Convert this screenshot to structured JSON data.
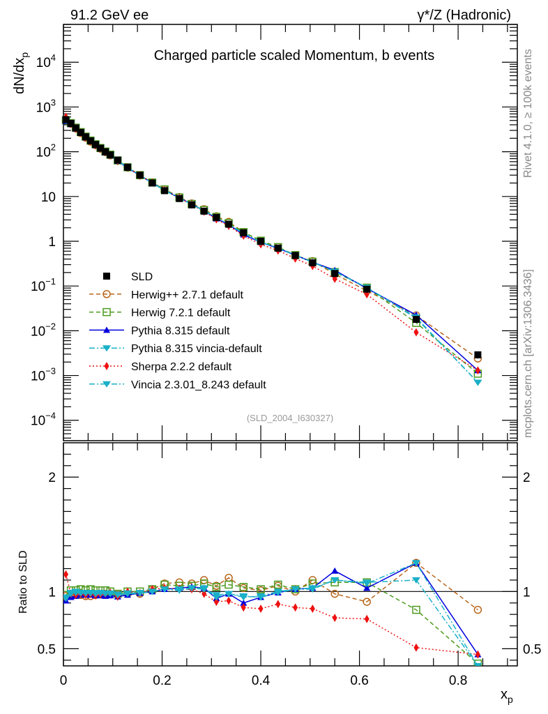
{
  "header": {
    "left": "91.2 GeV ee",
    "right": "γ*/Z (Hadronic)"
  },
  "side_labels": {
    "upper": "Rivet 4.1.0, ≥ 100k events",
    "lower": "mcplots.cern.ch [arXiv:1306.3436]"
  },
  "chart_data": [
    {
      "type": "line",
      "panel": "main",
      "title": "Charged particle scaled Momentum, b events",
      "analysis_id": "(SLD_2004_I630327)",
      "xlabel": "x_p",
      "ylabel": "dN/dx_p",
      "yscale": "log",
      "xlim": [
        0,
        0.92
      ],
      "ylim": [
        3.5e-05,
        70000
      ],
      "ytick_labels": [
        "10^4",
        "10^3",
        "10^2",
        "10",
        "1",
        "10^-1",
        "10^-2",
        "10^-3",
        "10^-4"
      ],
      "ytick_values": [
        10000,
        1000,
        100,
        10,
        1,
        0.1,
        0.01,
        0.001,
        0.0001
      ],
      "legend_position": "middle-left",
      "x": [
        0.005,
        0.015,
        0.025,
        0.035,
        0.045,
        0.055,
        0.065,
        0.075,
        0.085,
        0.095,
        0.11,
        0.13,
        0.155,
        0.18,
        0.205,
        0.235,
        0.26,
        0.285,
        0.31,
        0.335,
        0.365,
        0.4,
        0.435,
        0.47,
        0.505,
        0.55,
        0.615,
        0.715,
        0.84
      ],
      "series": [
        {
          "name": "SLD",
          "color": "#000000",
          "marker": "square-filled",
          "dash": "none",
          "values": [
            520,
            430,
            340,
            270,
            215,
            175,
            145,
            120,
            100,
            85,
            65,
            45,
            30,
            20,
            13.5,
            9,
            6.5,
            4.7,
            3.4,
            2.4,
            1.55,
            1.0,
            0.7,
            0.48,
            0.33,
            0.19,
            0.085,
            0.018,
            0.0029
          ]
        },
        {
          "name": "Herwig++ 2.7.1 default",
          "color": "#b8651b",
          "marker": "circle-open",
          "dash": "6,4",
          "values": [
            500,
            420,
            330,
            262,
            206,
            168,
            140,
            117,
            98,
            83,
            63,
            44,
            29.5,
            20.5,
            14.5,
            9.7,
            7.0,
            5.2,
            3.6,
            2.7,
            1.6,
            1.0,
            0.74,
            0.48,
            0.36,
            0.185,
            0.078,
            0.022,
            0.0024
          ]
        },
        {
          "name": "Herwig 7.2.1 default",
          "color": "#4d9a1f",
          "marker": "square-open",
          "dash": "6,4",
          "values": [
            505,
            435,
            345,
            275,
            218,
            178,
            147,
            121,
            101,
            86,
            64,
            45,
            30,
            20.5,
            14.4,
            9.5,
            6.8,
            5.0,
            3.5,
            2.55,
            1.6,
            1.03,
            0.74,
            0.49,
            0.35,
            0.205,
            0.092,
            0.015,
            0.0011
          ]
        },
        {
          "name": "Pythia 8.315 default",
          "color": "#0000dd",
          "marker": "triangle-up",
          "dash": "none",
          "values": [
            480,
            410,
            325,
            262,
            208,
            170,
            140,
            116,
            96,
            82,
            62,
            43.5,
            29.5,
            20,
            13.8,
            9.3,
            6.8,
            4.8,
            3.2,
            2.35,
            1.4,
            0.95,
            0.69,
            0.49,
            0.34,
            0.225,
            0.088,
            0.0225,
            0.0013
          ]
        },
        {
          "name": "Pythia 8.315 vincia-default",
          "color": "#1ab0c8",
          "marker": "triangle-down",
          "dash": "8,3,2,3",
          "values": [
            490,
            420,
            335,
            266,
            212,
            172,
            142,
            118,
            98,
            83,
            63,
            44,
            29.5,
            20,
            13.7,
            9.1,
            6.7,
            4.8,
            3.4,
            2.35,
            1.5,
            0.95,
            0.7,
            0.49,
            0.34,
            0.21,
            0.092,
            0.019,
            0.0007
          ]
        },
        {
          "name": "Sherpa 2.2.2 default",
          "color": "#ee1111",
          "marker": "diamond",
          "dash": "2,3",
          "values": [
            600,
            420,
            330,
            265,
            209,
            171,
            140,
            117,
            98,
            84,
            62,
            45,
            29.5,
            20.5,
            13.8,
            9.2,
            6.6,
            4.6,
            3.1,
            2.2,
            1.33,
            0.85,
            0.62,
            0.41,
            0.28,
            0.145,
            0.065,
            0.0092,
            0.0013
          ]
        },
        {
          "name": "Vincia 2.3.01_8.243 default",
          "color": "#1ab0c8",
          "marker": "triangle-down",
          "dash": "8,3,2,3",
          "values": [
            495,
            425,
            338,
            268,
            214,
            174,
            143,
            119,
            99,
            84,
            63,
            44.5,
            29.8,
            20.2,
            13.8,
            9.2,
            6.7,
            4.8,
            3.4,
            2.38,
            1.52,
            0.96,
            0.71,
            0.49,
            0.34,
            0.21,
            0.093,
            0.02,
            0.0007
          ]
        }
      ]
    },
    {
      "type": "line",
      "panel": "ratio",
      "xlabel": "x_p",
      "ylabel": "Ratio to SLD",
      "xlim": [
        0,
        0.92
      ],
      "ylim": [
        0.35,
        2.3
      ],
      "ytick_labels": [
        "0.5",
        "1",
        "2"
      ],
      "ytick_values": [
        0.5,
        1,
        2
      ],
      "xtick_labels": [
        "0",
        "0.2",
        "0.4",
        "0.6",
        "0.8"
      ],
      "xtick_values": [
        0,
        0.2,
        0.4,
        0.6,
        0.8
      ],
      "reference_line": 1,
      "x": [
        0.005,
        0.015,
        0.025,
        0.035,
        0.045,
        0.055,
        0.065,
        0.075,
        0.085,
        0.095,
        0.11,
        0.13,
        0.155,
        0.18,
        0.205,
        0.235,
        0.26,
        0.285,
        0.31,
        0.335,
        0.365,
        0.4,
        0.435,
        0.47,
        0.505,
        0.55,
        0.615,
        0.715,
        0.84
      ],
      "series": [
        {
          "name": "Herwig++ 2.7.1 default",
          "color": "#b8651b",
          "marker": "circle-open",
          "dash": "6,4",
          "values": [
            0.96,
            0.98,
            0.97,
            0.97,
            0.96,
            0.96,
            0.97,
            0.975,
            0.98,
            0.975,
            0.97,
            0.98,
            0.98,
            1.02,
            1.07,
            1.08,
            1.07,
            1.1,
            1.05,
            1.12,
            1.03,
            1.01,
            1.05,
            1.0,
            1.1,
            0.98,
            0.91,
            1.25,
            0.84
          ]
        },
        {
          "name": "Herwig 7.2.1 default",
          "color": "#4d9a1f",
          "marker": "square-open",
          "dash": "6,4",
          "values": [
            0.97,
            1.01,
            1.01,
            1.02,
            1.01,
            1.02,
            1.01,
            1.01,
            1.01,
            1.0,
            0.98,
            1.0,
            1.0,
            1.02,
            1.06,
            1.05,
            1.05,
            1.07,
            1.04,
            1.06,
            1.04,
            1.02,
            1.06,
            1.02,
            1.07,
            1.08,
            1.08,
            0.84,
            0.37
          ]
        },
        {
          "name": "Pythia 8.315 default",
          "color": "#0000dd",
          "marker": "triangle-up",
          "dash": "none",
          "values": [
            0.92,
            0.95,
            0.96,
            0.97,
            0.97,
            0.97,
            0.965,
            0.965,
            0.96,
            0.965,
            0.955,
            0.97,
            0.985,
            1.0,
            1.02,
            1.03,
            1.04,
            1.03,
            0.94,
            0.98,
            0.9,
            0.95,
            0.99,
            1.02,
            1.03,
            1.18,
            1.03,
            1.25,
            0.45
          ]
        },
        {
          "name": "Pythia 8.315 vincia-default",
          "color": "#1ab0c8",
          "marker": "triangle-down",
          "dash": "8,3,2,3",
          "values": [
            0.94,
            0.98,
            0.99,
            0.985,
            0.985,
            0.985,
            0.98,
            0.985,
            0.98,
            0.98,
            0.97,
            0.98,
            0.985,
            1.0,
            1.02,
            1.01,
            1.03,
            1.02,
            0.97,
            0.98,
            0.96,
            0.95,
            0.99,
            1.02,
            1.02,
            1.1,
            1.08,
            1.1,
            0.35
          ]
        },
        {
          "name": "Sherpa 2.2.2 default",
          "color": "#ee1111",
          "marker": "diamond",
          "dash": "2,3",
          "values": [
            1.15,
            0.98,
            0.97,
            0.98,
            0.97,
            0.98,
            0.965,
            0.975,
            0.98,
            0.99,
            0.955,
            1.0,
            0.985,
            1.02,
            1.03,
            1.02,
            1.02,
            0.98,
            0.91,
            0.92,
            0.86,
            0.85,
            0.89,
            0.86,
            0.85,
            0.77,
            0.76,
            0.51,
            0.45
          ]
        },
        {
          "name": "Vincia 2.3.01_8.243 default",
          "color": "#1ab0c8",
          "marker": "triangle-down",
          "dash": "8,3,2,3",
          "values": [
            0.95,
            0.99,
            1.0,
            0.99,
            0.99,
            0.99,
            0.985,
            0.99,
            0.985,
            0.985,
            0.975,
            0.985,
            0.99,
            1.0,
            1.02,
            1.02,
            1.03,
            1.03,
            0.95,
            0.98,
            0.95,
            0.96,
            1.0,
            1.02,
            1.03,
            1.1,
            1.07,
            1.25,
            0.35
          ]
        }
      ]
    }
  ]
}
